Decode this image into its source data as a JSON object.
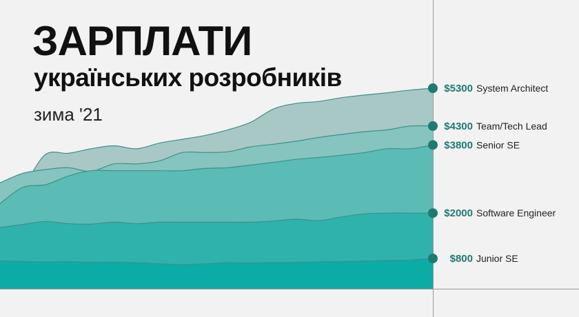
{
  "title": {
    "main": "ЗАРПЛАТИ",
    "sub": "українських розробників",
    "season": "зима '21"
  },
  "colors": {
    "background": "#f2f2f2",
    "marker": "#1f7a72",
    "valueText": "#1f7a72",
    "line": "#9a9a9a",
    "layers": [
      "#0aaca5",
      "#2fb2ac",
      "#5bbcb5",
      "#85c4bf",
      "#a8c8c5"
    ]
  },
  "chart_data": {
    "type": "area",
    "stacked": false,
    "x": [
      0,
      1,
      2,
      3,
      4,
      5,
      6,
      7,
      8,
      9,
      10,
      11,
      12,
      13,
      14,
      15,
      16,
      17,
      18,
      19
    ],
    "ylim": [
      0,
      5300
    ],
    "series": [
      {
        "name": "Junior SE",
        "value_label": "$800",
        "values": [
          740,
          720,
          710,
          715,
          700,
          705,
          690,
          660,
          640,
          660,
          690,
          685,
          690,
          700,
          710,
          720,
          730,
          750,
          760,
          800
        ]
      },
      {
        "name": "Software Engineer",
        "value_label": "$2000",
        "values": [
          1620,
          1700,
          1780,
          1720,
          1710,
          1760,
          1720,
          1760,
          1760,
          1760,
          1760,
          1760,
          1790,
          1840,
          1800,
          1900,
          1980,
          2000,
          2000,
          2000
        ]
      },
      {
        "name": "Senior SE",
        "value_label": "$3800",
        "values": [
          2250,
          2680,
          2750,
          2980,
          3120,
          3120,
          3120,
          3120,
          3120,
          3180,
          3200,
          3270,
          3340,
          3420,
          3470,
          3530,
          3600,
          3700,
          3700,
          3800
        ]
      },
      {
        "name": "Team/Tech Lead",
        "value_label": "$4300",
        "values": [
          2800,
          3050,
          3150,
          3200,
          3100,
          3300,
          3300,
          3380,
          3600,
          3600,
          3620,
          3750,
          3820,
          3900,
          4000,
          4080,
          4150,
          4200,
          4300,
          4300
        ]
      },
      {
        "name": "System Architect",
        "value_label": "$5300",
        "values": [
          2650,
          2750,
          3550,
          3580,
          3700,
          3780,
          3700,
          3850,
          3950,
          4050,
          4200,
          4400,
          4750,
          4900,
          4950,
          5050,
          5120,
          5180,
          5250,
          5300
        ]
      }
    ]
  }
}
